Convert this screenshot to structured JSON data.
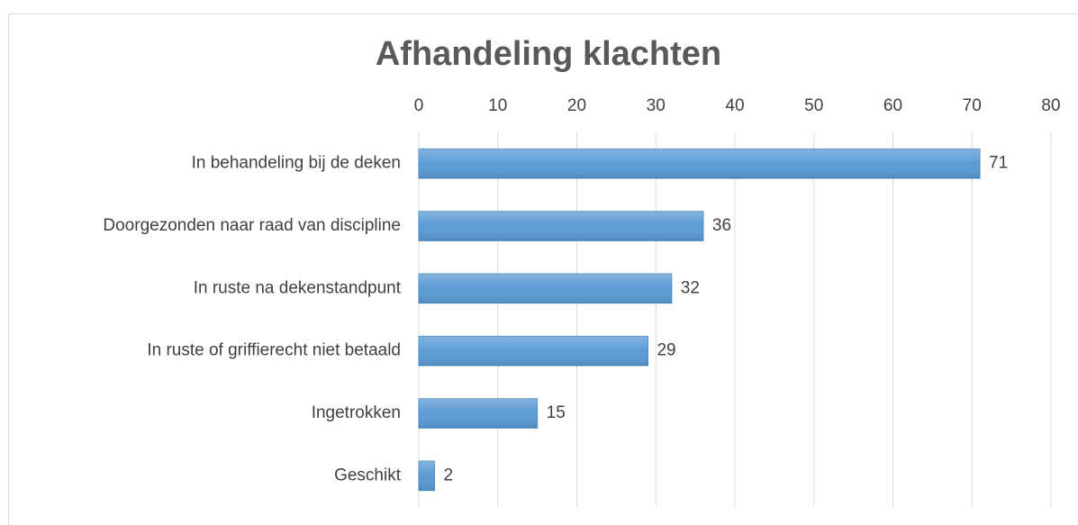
{
  "chart_data": {
    "type": "bar",
    "orientation": "horizontal",
    "title": "Afhandeling klachten",
    "categories": [
      "In behandeling bij de deken",
      "Doorgezonden naar raad van discipline",
      "In ruste na dekenstandpunt",
      "In ruste of griffierecht niet betaald",
      "Ingetrokken",
      "Geschikt"
    ],
    "values": [
      71,
      36,
      32,
      29,
      15,
      2
    ],
    "color": "#5b9bd5",
    "xlim": [
      0,
      80
    ],
    "xticks": [
      0,
      10,
      20,
      30,
      40,
      50,
      60,
      70,
      80
    ],
    "grid": true
  }
}
